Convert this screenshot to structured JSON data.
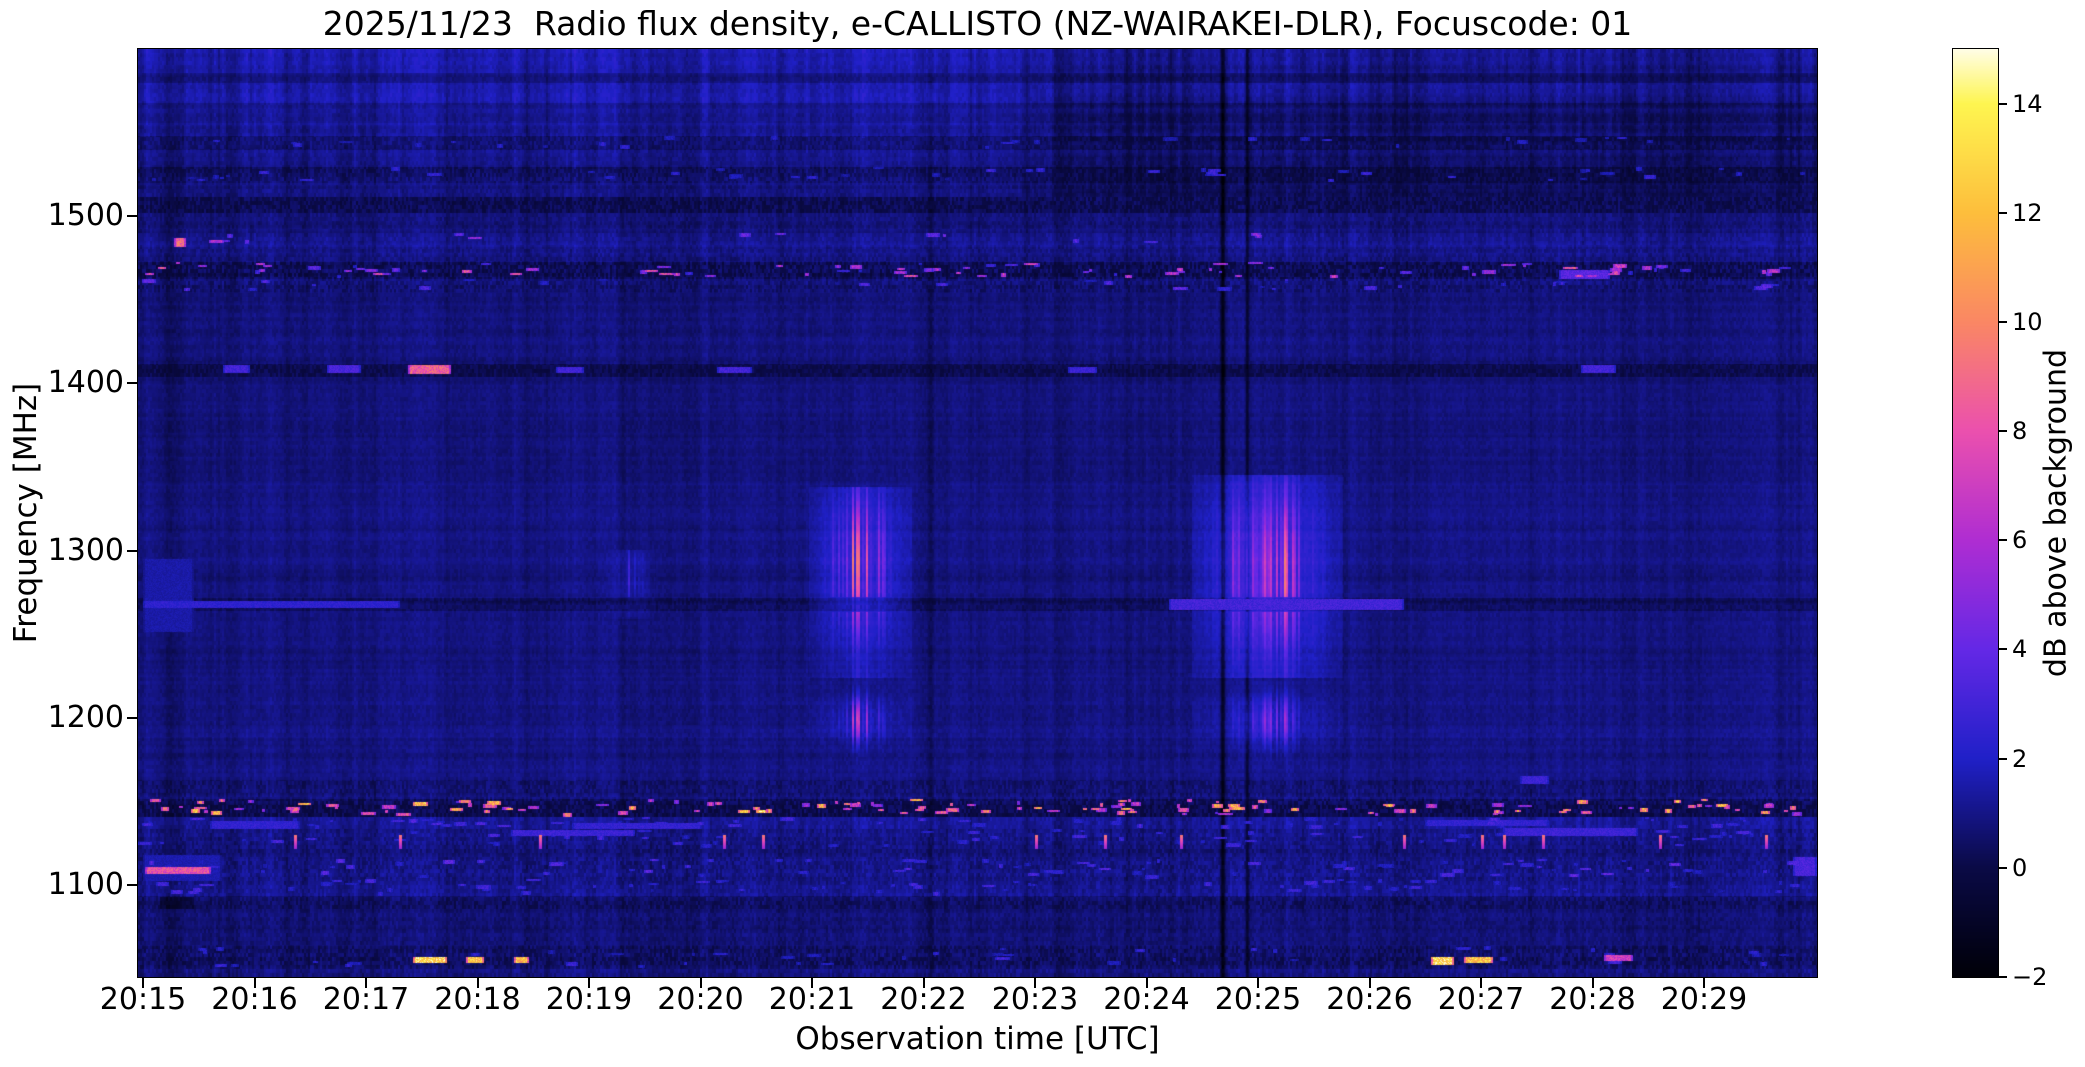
{
  "chart_data": {
    "type": "heatmap",
    "title": "2025/11/23  Radio flux density, e-CALLISTO (NZ-WAIRAKEI-DLR), Focuscode: 01",
    "xlabel": "Observation time [UTC]",
    "ylabel": "Frequency [MHz]",
    "colorbar_label": "dB above background",
    "x_ticks": [
      "20:15",
      "20:16",
      "20:17",
      "20:18",
      "20:19",
      "20:20",
      "20:21",
      "20:22",
      "20:23",
      "20:24",
      "20:25",
      "20:26",
      "20:27",
      "20:28",
      "20:29"
    ],
    "x_range_utc": [
      "20:15",
      "20:30"
    ],
    "y_ticks": [
      1500,
      1400,
      1300,
      1200,
      1100
    ],
    "y_range_mhz": [
      1045,
      1600
    ],
    "value_range_db": [
      -2,
      15
    ],
    "colorbar_ticks": [
      14,
      12,
      10,
      8,
      6,
      4,
      2,
      0,
      -2
    ],
    "colorbar_tick_labels": [
      "14",
      "12",
      "10",
      "8",
      "6",
      "4",
      "2",
      "0",
      "−2"
    ],
    "grid": false,
    "legend": "none",
    "colormap": {
      "name": "gnuplot2-like",
      "stops": [
        [
          -2,
          "#000008"
        ],
        [
          0,
          "#0a0a46"
        ],
        [
          2,
          "#2020c8"
        ],
        [
          4,
          "#6428e6"
        ],
        [
          6,
          "#af2dd2"
        ],
        [
          8,
          "#eb50ae"
        ],
        [
          10,
          "#fa8764"
        ],
        [
          12,
          "#fdbe3c"
        ],
        [
          14,
          "#fef550"
        ],
        [
          15,
          "#fffde6"
        ]
      ]
    },
    "noise_seed": 7,
    "bands": [
      {
        "f": [
          1600,
          1586
        ],
        "base": 1.5,
        "stripe": 0.9,
        "grain": 0.5
      },
      {
        "f": [
          1586,
          1580
        ],
        "base": 0.9,
        "stripe": 0.7,
        "grain": 0.5
      },
      {
        "f": [
          1580,
          1568
        ],
        "base": 1.5,
        "stripe": 0.9,
        "grain": 0.5
      },
      {
        "f": [
          1568,
          1556
        ],
        "base": 1.0,
        "stripe": 0.8,
        "grain": 0.5
      },
      {
        "f": [
          1556,
          1548
        ],
        "base": 1.25,
        "stripe": 0.85,
        "grain": 0.5
      },
      {
        "f": [
          1548,
          1540
        ],
        "base": 0.55,
        "stripe": 0.7,
        "grain": 0.8,
        "speckle": {
          "count": 30,
          "db": [
            1.5,
            2.5
          ]
        }
      },
      {
        "f": [
          1540,
          1530
        ],
        "base": 1.1,
        "stripe": 0.8,
        "grain": 0.5
      },
      {
        "f": [
          1530,
          1520
        ],
        "base": 0.5,
        "stripe": 0.7,
        "grain": 0.9,
        "speckle": {
          "count": 45,
          "db": [
            1.5,
            3.0
          ]
        }
      },
      {
        "f": [
          1520,
          1512
        ],
        "base": 0.85,
        "stripe": 0.7,
        "grain": 0.6
      },
      {
        "f": [
          1512,
          1502
        ],
        "base": 0.15,
        "stripe": 0.5,
        "grain": 1.0
      },
      {
        "f": [
          1502,
          1490
        ],
        "base": 0.8,
        "stripe": 0.65,
        "grain": 0.6
      },
      {
        "f": [
          1490,
          1482
        ],
        "base": 1.05,
        "stripe": 0.75,
        "grain": 0.6,
        "speckle": {
          "count": 14,
          "db": [
            3,
            6
          ]
        }
      },
      {
        "f": [
          1482,
          1473
        ],
        "base": 0.85,
        "stripe": 0.6,
        "grain": 0.7
      },
      {
        "f": [
          1473,
          1463
        ],
        "base": 0.2,
        "stripe": 0.45,
        "grain": 1.2,
        "speckle": {
          "count": 90,
          "db": [
            2.5,
            8.5
          ]
        }
      },
      {
        "f": [
          1463,
          1455
        ],
        "base": 0.6,
        "stripe": 0.6,
        "grain": 0.9,
        "speckle": {
          "count": 30,
          "db": [
            1.5,
            4
          ]
        }
      },
      {
        "f": [
          1455,
          1412
        ],
        "base": 0.8,
        "stripe": 0.55,
        "grain": 0.45
      },
      {
        "f": [
          1412,
          1404
        ],
        "base": 0.12,
        "stripe": 0.35,
        "grain": 0.8
      },
      {
        "f": [
          1404,
          1342
        ],
        "base": 0.8,
        "stripe": 0.5,
        "grain": 0.4
      },
      {
        "f": [
          1342,
          1272
        ],
        "base": 0.85,
        "stripe": 0.5,
        "grain": 0.4
      },
      {
        "f": [
          1272,
          1264
        ],
        "base": 0.3,
        "stripe": 0.4,
        "grain": 0.6
      },
      {
        "f": [
          1264,
          1212
        ],
        "base": 0.85,
        "stripe": 0.5,
        "grain": 0.4
      },
      {
        "f": [
          1212,
          1188
        ],
        "base": 0.9,
        "stripe": 0.5,
        "grain": 0.45
      },
      {
        "f": [
          1188,
          1163
        ],
        "base": 0.85,
        "stripe": 0.5,
        "grain": 0.45
      },
      {
        "f": [
          1163,
          1152
        ],
        "base": 0.65,
        "stripe": 0.6,
        "grain": 0.8
      },
      {
        "f": [
          1152,
          1141
        ],
        "base": 0.1,
        "stripe": 0.4,
        "grain": 1.1,
        "speckle": {
          "count": 140,
          "db": [
            5,
            12.8
          ]
        }
      },
      {
        "f": [
          1141,
          1134
        ],
        "base": 1.25,
        "stripe": 0.8,
        "grain": 0.6,
        "speckle": {
          "count": 60,
          "db": [
            2,
            3.5
          ]
        }
      },
      {
        "f": [
          1134,
          1122
        ],
        "base": 0.95,
        "stripe": 0.7,
        "grain": 0.8,
        "speckle": {
          "count": 60,
          "db": [
            1.8,
            3.2
          ]
        }
      },
      {
        "f": [
          1122,
          1116
        ],
        "base": 0.7,
        "stripe": 0.6,
        "grain": 0.8
      },
      {
        "f": [
          1116,
          1104
        ],
        "base": 0.85,
        "stripe": 0.65,
        "grain": 0.9,
        "speckle": {
          "count": 80,
          "db": [
            1.8,
            4
          ]
        }
      },
      {
        "f": [
          1104,
          1094
        ],
        "base": 1.0,
        "stripe": 0.7,
        "grain": 0.7,
        "speckle": {
          "count": 70,
          "db": [
            1.8,
            3.2
          ]
        }
      },
      {
        "f": [
          1094,
          1086
        ],
        "base": 0.5,
        "stripe": 0.55,
        "grain": 0.9
      },
      {
        "f": [
          1086,
          1064
        ],
        "base": 0.75,
        "stripe": 0.6,
        "grain": 0.6
      },
      {
        "f": [
          1064,
          1050
        ],
        "base": 0.5,
        "stripe": 0.6,
        "grain": 1.0,
        "speckle": {
          "count": 45,
          "db": [
            1.5,
            3
          ]
        }
      },
      {
        "f": [
          1050,
          1045
        ],
        "base": 0.8,
        "stripe": 0.7,
        "grain": 0.7
      }
    ],
    "segments": [
      {
        "t": [
          0.28,
          0.38
        ],
        "f": [
          1487,
          1482
        ],
        "db": 9
      },
      {
        "t": [
          0.72,
          0.95
        ],
        "f": [
          1411,
          1407
        ],
        "db": 3.0
      },
      {
        "t": [
          1.65,
          1.95
        ],
        "f": [
          1411,
          1407
        ],
        "db": 3.2
      },
      {
        "t": [
          2.38,
          2.75
        ],
        "f": [
          1411,
          1406
        ],
        "db": 8.5
      },
      {
        "t": [
          3.7,
          3.95
        ],
        "f": [
          1410,
          1407
        ],
        "db": 3.0
      },
      {
        "t": [
          5.15,
          5.45
        ],
        "f": [
          1410,
          1407
        ],
        "db": 3.0
      },
      {
        "t": [
          8.3,
          8.55
        ],
        "f": [
          1410,
          1407
        ],
        "db": 2.8
      },
      {
        "t": [
          12.9,
          13.2
        ],
        "f": [
          1411,
          1407
        ],
        "db": 3.0
      },
      {
        "t": [
          12.7,
          13.15
        ],
        "f": [
          1468,
          1463
        ],
        "db": 3.6
      },
      {
        "t": [
          0.0,
          2.3
        ],
        "f": [
          1270,
          1266
        ],
        "db": 2.4
      },
      {
        "t": [
          9.2,
          11.3
        ],
        "f": [
          1271,
          1265
        ],
        "db": 3.0
      },
      {
        "t": [
          0.02,
          0.6
        ],
        "f": [
          1111,
          1107
        ],
        "db": 8
      },
      {
        "t": [
          0.0,
          0.7
        ],
        "f": [
          1118,
          1103
        ],
        "db": 1.6
      },
      {
        "t": [
          0.0,
          0.45
        ],
        "f": [
          1295,
          1252
        ],
        "db": 1.5
      },
      {
        "t": [
          2.42,
          2.72
        ],
        "f": [
          1057,
          1054
        ],
        "db": 13.2
      },
      {
        "t": [
          2.9,
          3.05
        ],
        "f": [
          1057,
          1054
        ],
        "db": 12.3
      },
      {
        "t": [
          3.33,
          3.45
        ],
        "f": [
          1057,
          1054
        ],
        "db": 12.0
      },
      {
        "t": [
          11.55,
          11.75
        ],
        "f": [
          1057,
          1053
        ],
        "db": 13.2
      },
      {
        "t": [
          11.85,
          12.1
        ],
        "f": [
          1057,
          1054
        ],
        "db": 12.3
      },
      {
        "t": [
          13.1,
          13.35
        ],
        "f": [
          1058,
          1055
        ],
        "db": 7
      },
      {
        "t": [
          14.8,
          15.05
        ],
        "f": [
          1117,
          1106
        ],
        "db": 3.2
      },
      {
        "t": [
          3.3,
          4.4
        ],
        "f": [
          1133,
          1130
        ],
        "db": 2.8
      },
      {
        "t": [
          3.85,
          5.0
        ],
        "f": [
          1137,
          1134
        ],
        "db": 2.6
      },
      {
        "t": [
          0.6,
          1.4
        ],
        "f": [
          1138,
          1134
        ],
        "db": 2.5
      },
      {
        "t": [
          12.2,
          13.4
        ],
        "f": [
          1134,
          1130
        ],
        "db": 2.8
      },
      {
        "t": [
          11.5,
          12.6
        ],
        "f": [
          1139,
          1136
        ],
        "db": 2.5
      },
      {
        "t": [
          12.35,
          12.6
        ],
        "f": [
          1165,
          1161
        ],
        "db": 2.8
      },
      {
        "t": [
          0.15,
          0.45
        ],
        "f": [
          1093,
          1086
        ],
        "db": -0.8
      }
    ],
    "orange_ticks": {
      "times": [
        1.35,
        2.3,
        3.55,
        5.2,
        5.55,
        8.0,
        8.62,
        9.3,
        11.3,
        12.0,
        12.2,
        12.55,
        13.6,
        14.55
      ],
      "f": [
        1130,
        1122
      ],
      "db": 9.5
    },
    "events": [
      {
        "tc": 4.37,
        "sigma": 0.06,
        "fTop": 1300,
        "fBot": 1260,
        "fPeak": 1285,
        "fSig": 12,
        "peak": 2.2,
        "echo": {
          "fc": 1199,
          "fsig": 8,
          "peak": 0,
          "sigma": 0.06
        }
      },
      {
        "tc": 6.43,
        "sigma": 0.13,
        "fTop": 1338,
        "fBot": 1225,
        "fPeak": 1292,
        "fSig": 26,
        "peak": 7.0,
        "echo": {
          "fc": 1199,
          "fsig": 9,
          "peak": 5.8,
          "sigma": 0.1
        }
      },
      {
        "tc": 10.08,
        "sigma": 0.19,
        "fTop": 1345,
        "fBot": 1225,
        "fPeak": 1288,
        "fSig": 30,
        "peak": 8.4,
        "echo": {
          "fc": 1199,
          "fsig": 10,
          "peak": 6.6,
          "sigma": 0.14
        }
      }
    ],
    "dark_columns": [
      {
        "t": 0.25,
        "w": 5,
        "d": 0.45
      },
      {
        "t": 4.3,
        "w": 3,
        "d": 0.5
      },
      {
        "t": 7.06,
        "w": 3,
        "d": 0.8
      },
      {
        "t": 9.68,
        "w": 1.6,
        "d": 2.4
      },
      {
        "t": 9.9,
        "w": 1.2,
        "d": 1.3
      }
    ],
    "right_dark_region": {
      "t_start": 8.1,
      "f_above": 1512,
      "drop": 0.38
    }
  }
}
